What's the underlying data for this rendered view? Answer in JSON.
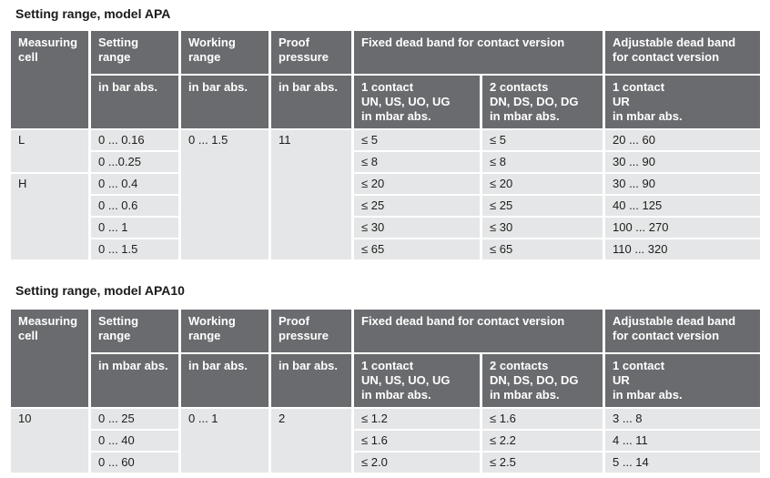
{
  "colors": {
    "header_bg": "#6a6b6e",
    "header_text": "#ffffff",
    "row_bg": "#e5e6e7",
    "body_text": "#1d1d1b",
    "page_bg": "#ffffff"
  },
  "apa": {
    "title": "Setting range, model APA",
    "head": {
      "measuring_cell": "Measuring\ncell",
      "setting_range": "Setting\nrange",
      "working_range": "Working\nrange",
      "proof_pressure": "Proof\npressure",
      "fixed_dead_band": "Fixed dead band for contact version",
      "adjustable_dead_band": "Adjustable dead band\nfor contact version",
      "setting_unit": "in bar abs.",
      "working_unit": "in bar abs.",
      "proof_unit": "in bar abs.",
      "contact_1": "1 contact\nUN, US, UO, UG\nin mbar abs.",
      "contact_2": "2 contacts\nDN, DS, DO, DG\nin mbar abs.",
      "contact_ur": "1 contact\nUR\nin mbar abs."
    },
    "cells": {
      "measuring_l": "L",
      "measuring_h": "H",
      "working": "0 ... 1.5",
      "proof": "11",
      "setting": [
        "0 ... 0.16",
        "0 ...0.25",
        "0 ... 0.4",
        "0 ... 0.6",
        "0 ... 1",
        "0 ... 1.5"
      ],
      "fixed1": [
        "≤ 5",
        "≤ 8",
        "≤ 20",
        "≤ 25",
        "≤ 30",
        "≤ 65"
      ],
      "fixed2": [
        "≤ 5",
        "≤ 8",
        "≤ 20",
        "≤ 25",
        "≤ 30",
        "≤ 65"
      ],
      "adjustable": [
        "20 ... 60",
        "30 ... 90",
        "30 ... 90",
        "40 ... 125",
        "100 ... 270",
        "110 ... 320"
      ]
    }
  },
  "apa10": {
    "title": "Setting range, model APA10",
    "head": {
      "measuring_cell": "Measuring\ncell",
      "setting_range": "Setting\nrange",
      "working_range": "Working\nrange",
      "proof_pressure": "Proof\npressure",
      "fixed_dead_band": "Fixed dead band for contact version",
      "adjustable_dead_band": "Adjustable dead band\nfor contact version",
      "setting_unit": "in mbar abs.",
      "working_unit": "in bar abs.",
      "proof_unit": "in bar abs.",
      "contact_1": "1 contact\nUN, US, UO, UG\nin mbar abs.",
      "contact_2": "2 contacts\nDN, DS, DO, DG\nin mbar abs.",
      "contact_ur": "1 contact\nUR\nin mbar abs."
    },
    "cells": {
      "measuring": "10",
      "working": "0 ... 1",
      "proof": "2",
      "setting": [
        "0 ... 25",
        "0 ... 40",
        "0 ... 60"
      ],
      "fixed1": [
        "≤ 1.2",
        "≤ 1.6",
        "≤ 2.0"
      ],
      "fixed2": [
        "≤ 1.6",
        "≤ 2.2",
        "≤ 2.5"
      ],
      "adjustable": [
        "3 ... 8",
        "4 ... 11",
        "5 ... 14"
      ]
    }
  }
}
